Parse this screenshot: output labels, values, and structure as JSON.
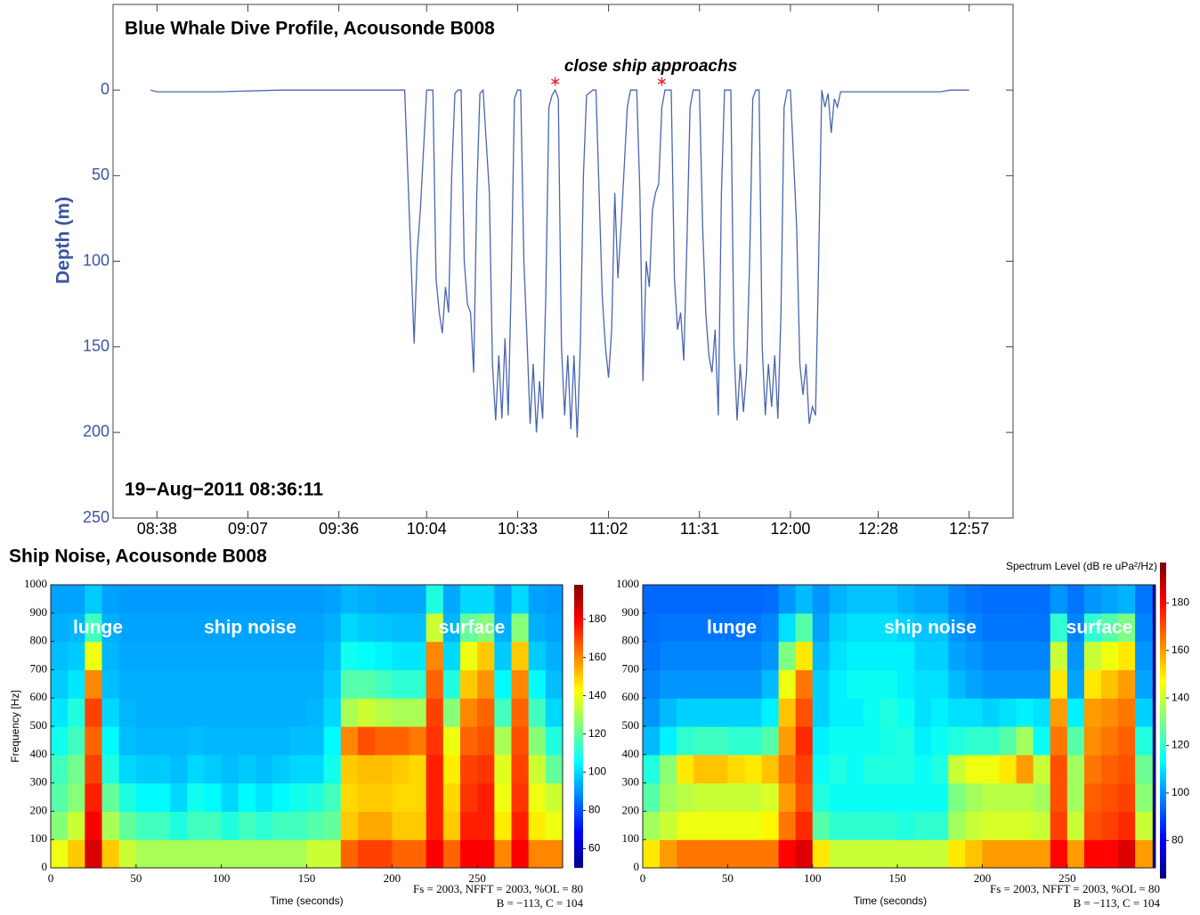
{
  "chart_data": [
    {
      "type": "line",
      "title": "Blue Whale Dive Profile, Acousonde B008",
      "date_label": "19−Aug−2011 08:36:11",
      "ylabel": "Depth (m)",
      "y_reversed": true,
      "color": "#4a66b0",
      "axis_color": "#3a55a4",
      "xlim": [
        "08:24",
        "13:11"
      ],
      "xticks": [
        "08:38",
        "09:07",
        "09:36",
        "10:04",
        "10:33",
        "11:02",
        "11:31",
        "12:00",
        "12:28",
        "12:57"
      ],
      "ylim": [
        -50,
        250
      ],
      "yticks": [
        0,
        50,
        100,
        150,
        200,
        250
      ],
      "x": [
        "08:36",
        "08:38",
        "08:58",
        "09:18",
        "09:38",
        "09:57",
        "10:00",
        "10:01",
        "10:02",
        "10:04",
        "10:06",
        "10:07",
        "10:08",
        "10:09",
        "10:10",
        "10:11",
        "10:12",
        "10:13",
        "10:14",
        "10:15",
        "10:16",
        "10:17",
        "10:18",
        "10:19",
        "10:20",
        "10:21",
        "10:22",
        "10:24",
        "10:25",
        "10:26",
        "10:27",
        "10:28",
        "10:29",
        "10:30",
        "10:31",
        "10:32",
        "10:33",
        "10:34",
        "10:35",
        "10:36",
        "10:37",
        "10:38",
        "10:39",
        "10:40",
        "10:41",
        "10:42",
        "10:43",
        "10:44",
        "10:45",
        "10:46",
        "10:47",
        "10:48",
        "10:49",
        "10:50",
        "10:51",
        "10:52",
        "10:53",
        "10:54",
        "10:55",
        "10:57",
        "10:58",
        "11:00",
        "11:01",
        "11:02",
        "11:03",
        "11:04",
        "11:05",
        "11:06",
        "11:08",
        "11:09",
        "11:11",
        "11:12",
        "11:13",
        "11:14",
        "11:15",
        "11:16",
        "11:17",
        "11:18",
        "11:19",
        "11:20",
        "11:22",
        "11:23",
        "11:24",
        "11:25",
        "11:26",
        "11:27",
        "11:28",
        "11:29",
        "11:31",
        "11:32",
        "11:33",
        "11:34",
        "11:35",
        "11:36",
        "11:37",
        "11:38",
        "11:39",
        "11:41",
        "11:42",
        "11:43",
        "11:44",
        "11:45",
        "11:46",
        "11:47",
        "11:48",
        "11:49",
        "11:50",
        "11:51",
        "11:52",
        "11:53",
        "11:54",
        "11:55",
        "11:56",
        "11:57",
        "11:58",
        "11:59",
        "12:00",
        "12:02",
        "12:03",
        "12:04",
        "12:05",
        "12:06",
        "12:07",
        "12:08",
        "12:09",
        "12:10",
        "12:11",
        "12:12",
        "12:13",
        "12:14",
        "12:15",
        "12:16",
        "12:28",
        "12:48",
        "12:51",
        "12:57"
      ],
      "values": [
        0,
        1,
        1,
        0,
        0,
        0,
        148,
        95,
        70,
        0,
        0,
        110,
        130,
        142,
        115,
        130,
        50,
        2,
        0,
        0,
        100,
        125,
        130,
        165,
        60,
        2,
        0,
        60,
        160,
        193,
        155,
        192,
        145,
        190,
        110,
        5,
        0,
        0,
        100,
        145,
        195,
        160,
        200,
        170,
        192,
        120,
        10,
        3,
        0,
        5,
        150,
        190,
        155,
        198,
        155,
        203,
        150,
        50,
        3,
        0,
        0,
        120,
        150,
        168,
        140,
        60,
        110,
        80,
        10,
        0,
        0,
        60,
        170,
        100,
        115,
        70,
        60,
        55,
        10,
        0,
        0,
        110,
        140,
        130,
        158,
        90,
        10,
        0,
        0,
        80,
        130,
        155,
        165,
        140,
        190,
        60,
        0,
        0,
        150,
        193,
        160,
        188,
        165,
        100,
        5,
        0,
        0,
        150,
        190,
        160,
        185,
        155,
        192,
        130,
        10,
        0,
        0,
        80,
        160,
        178,
        160,
        195,
        185,
        190,
        100,
        0,
        10,
        2,
        25,
        5,
        10,
        1,
        1,
        1,
        0,
        0
      ],
      "annotation": "close ship approachs",
      "markers": {
        "x": [
          "10:45",
          "11:19"
        ],
        "values": [
          -5,
          -5
        ],
        "color": "#e8202a"
      }
    },
    {
      "type": "heatmap",
      "ylabel": "Frequency [Hz]",
      "xlabel": "Time (seconds)",
      "colormap": "jet",
      "xlim": [
        0,
        300
      ],
      "xticks": [
        0,
        50,
        100,
        150,
        200,
        250
      ],
      "ylim": [
        0,
        1000
      ],
      "yticks": [
        0,
        100,
        200,
        300,
        400,
        500,
        600,
        700,
        800,
        900,
        1000
      ],
      "clim": [
        50,
        198
      ],
      "cticks": [
        60,
        80,
        100,
        120,
        140,
        160,
        180
      ],
      "annotations": [
        "lunge",
        "ship noise",
        "surface"
      ],
      "notes": [
        "Fs = 2003, NFFT = 2003, %OL = 80",
        "B = −113, C = 104"
      ],
      "x_bins": [
        0,
        10,
        20,
        30,
        40,
        50,
        60,
        70,
        80,
        90,
        100,
        110,
        120,
        130,
        140,
        150,
        160,
        170,
        180,
        190,
        200,
        210,
        220,
        230,
        240,
        250,
        260,
        270,
        280,
        290,
        300
      ],
      "y_bins": [
        0,
        100,
        200,
        300,
        400,
        500,
        600,
        700,
        800,
        900,
        1000
      ],
      "z": [
        [
          140,
          150,
          185,
          150,
          135,
          130,
          130,
          130,
          130,
          130,
          130,
          130,
          130,
          130,
          130,
          135,
          135,
          165,
          170,
          170,
          165,
          165,
          180,
          165,
          180,
          180,
          160,
          180,
          160,
          160
        ],
        [
          125,
          135,
          180,
          130,
          120,
          115,
          115,
          110,
          115,
          115,
          110,
          115,
          112,
          115,
          115,
          118,
          120,
          150,
          155,
          155,
          150,
          150,
          175,
          150,
          175,
          175,
          145,
          175,
          145,
          140
        ],
        [
          118,
          125,
          175,
          120,
          110,
          105,
          105,
          100,
          108,
          105,
          100,
          105,
          102,
          105,
          108,
          110,
          115,
          148,
          150,
          150,
          148,
          148,
          175,
          148,
          172,
          175,
          140,
          172,
          140,
          135
        ],
        [
          115,
          122,
          170,
          110,
          100,
          98,
          98,
          96,
          100,
          98,
          96,
          98,
          96,
          98,
          100,
          100,
          108,
          150,
          152,
          152,
          150,
          148,
          175,
          145,
          170,
          172,
          138,
          170,
          135,
          120
        ],
        [
          108,
          115,
          165,
          105,
          96,
          95,
          95,
          95,
          96,
          95,
          95,
          95,
          95,
          95,
          96,
          96,
          105,
          160,
          168,
          165,
          165,
          162,
          172,
          140,
          165,
          168,
          130,
          168,
          125,
          110
        ],
        [
          102,
          110,
          170,
          100,
          95,
          94,
          94,
          94,
          94,
          94,
          94,
          94,
          94,
          94,
          94,
          95,
          100,
          130,
          135,
          132,
          130,
          130,
          170,
          125,
          160,
          165,
          115,
          165,
          115,
          100
        ],
        [
          98,
          102,
          160,
          96,
          94,
          94,
          94,
          94,
          94,
          94,
          94,
          94,
          94,
          94,
          94,
          94,
          98,
          118,
          118,
          115,
          112,
          112,
          165,
          110,
          150,
          158,
          105,
          160,
          105,
          96
        ],
        [
          96,
          98,
          140,
          95,
          93,
          93,
          93,
          93,
          93,
          93,
          93,
          93,
          93,
          93,
          93,
          93,
          96,
          108,
          106,
          104,
          102,
          102,
          160,
          100,
          140,
          150,
          98,
          150,
          98,
          94
        ],
        [
          94,
          95,
          115,
          94,
          92,
          92,
          92,
          92,
          92,
          92,
          92,
          92,
          92,
          92,
          92,
          92,
          94,
          100,
          98,
          97,
          96,
          96,
          135,
          95,
          120,
          125,
          94,
          125,
          94,
          92
        ],
        [
          92,
          92,
          98,
          92,
          91,
          91,
          91,
          91,
          91,
          91,
          91,
          91,
          91,
          91,
          91,
          91,
          92,
          95,
          94,
          93,
          93,
          93,
          110,
          93,
          100,
          100,
          92,
          100,
          92,
          91
        ]
      ]
    },
    {
      "type": "heatmap",
      "xlabel": "Time (seconds)",
      "colormap": "jet",
      "xlim": [
        0,
        302
      ],
      "xticks": [
        0,
        50,
        100,
        150,
        200,
        250
      ],
      "ylim": [
        0,
        1000
      ],
      "yticks": [
        0,
        100,
        200,
        300,
        400,
        500,
        600,
        700,
        800,
        900,
        1000
      ],
      "clim": [
        64,
        197
      ],
      "cticks": [
        80,
        100,
        120,
        140,
        160,
        180
      ],
      "annotations": [
        "lunge",
        "ship noise",
        "surface"
      ],
      "notes": [
        "Fs = 2003, NFFT = 2003, %OL = 80",
        "B = −113, C = 104"
      ],
      "x_bins": [
        0,
        10,
        20,
        30,
        40,
        50,
        60,
        70,
        80,
        90,
        100,
        110,
        120,
        130,
        140,
        150,
        160,
        170,
        180,
        190,
        200,
        210,
        220,
        230,
        240,
        250,
        260,
        270,
        280,
        290,
        300
      ],
      "y_bins": [
        0,
        100,
        200,
        300,
        400,
        500,
        600,
        700,
        800,
        900,
        1000
      ],
      "z": [
        [
          150,
          160,
          165,
          165,
          165,
          165,
          165,
          165,
          180,
          185,
          150,
          140,
          140,
          140,
          140,
          140,
          140,
          140,
          150,
          155,
          160,
          160,
          160,
          160,
          180,
          160,
          180,
          180,
          185,
          160
        ],
        [
          135,
          140,
          145,
          145,
          145,
          145,
          145,
          148,
          165,
          175,
          125,
          120,
          120,
          120,
          120,
          118,
          120,
          120,
          135,
          140,
          142,
          142,
          142,
          140,
          172,
          140,
          170,
          172,
          175,
          140
        ],
        [
          125,
          135,
          138,
          140,
          140,
          140,
          140,
          142,
          160,
          170,
          118,
          115,
          115,
          115,
          115,
          115,
          115,
          115,
          130,
          135,
          138,
          138,
          138,
          135,
          170,
          135,
          168,
          170,
          172,
          132
        ],
        [
          118,
          132,
          150,
          155,
          155,
          152,
          150,
          155,
          165,
          172,
          115,
          118,
          115,
          118,
          118,
          118,
          115,
          118,
          140,
          145,
          145,
          150,
          160,
          140,
          170,
          135,
          165,
          168,
          170,
          128
        ],
        [
          105,
          112,
          120,
          122,
          122,
          120,
          120,
          125,
          160,
          175,
          112,
          115,
          115,
          115,
          117,
          118,
          112,
          115,
          118,
          120,
          120,
          125,
          135,
          115,
          165,
          125,
          162,
          165,
          168,
          118
        ],
        [
          100,
          105,
          108,
          108,
          108,
          108,
          108,
          112,
          155,
          170,
          108,
          112,
          112,
          115,
          118,
          115,
          110,
          112,
          110,
          110,
          108,
          110,
          112,
          110,
          160,
          112,
          160,
          162,
          165,
          108
        ],
        [
          98,
          100,
          100,
          100,
          100,
          100,
          100,
          105,
          145,
          165,
          108,
          112,
          115,
          115,
          115,
          112,
          110,
          110,
          105,
          102,
          100,
          100,
          100,
          100,
          150,
          102,
          150,
          155,
          160,
          102
        ],
        [
          96,
          98,
          98,
          98,
          98,
          98,
          98,
          100,
          130,
          150,
          105,
          110,
          112,
          112,
          112,
          112,
          108,
          108,
          102,
          100,
          98,
          98,
          98,
          98,
          140,
          100,
          140,
          145,
          150,
          100
        ],
        [
          95,
          96,
          96,
          96,
          96,
          96,
          96,
          98,
          110,
          125,
          102,
          108,
          110,
          110,
          110,
          108,
          106,
          106,
          100,
          98,
          96,
          96,
          96,
          96,
          120,
          98,
          120,
          125,
          130,
          98
        ],
        [
          94,
          94,
          94,
          94,
          94,
          94,
          94,
          95,
          100,
          105,
          100,
          104,
          106,
          106,
          106,
          104,
          102,
          102,
          98,
          96,
          95,
          95,
          95,
          95,
          100,
          96,
          100,
          102,
          104,
          96
        ]
      ]
    }
  ],
  "section_title": "Ship Noise, Acousonde B008",
  "colorbar_label": "Spectrum Level (dB re uPa²/Hz)"
}
